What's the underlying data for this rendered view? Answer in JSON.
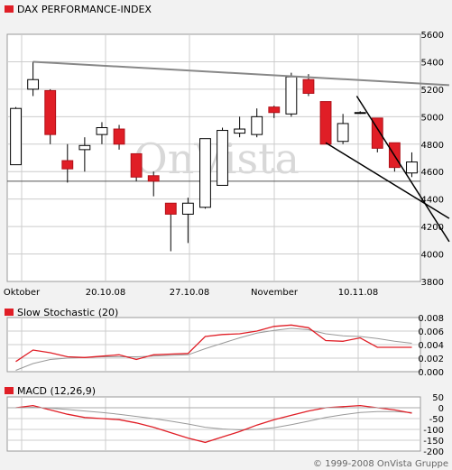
{
  "legend": {
    "main": "DAX PERFORMANCE-INDEX",
    "stochastic": "Slow Stochastic (20)",
    "macd": "MACD (12,26,9)"
  },
  "watermark": "OnVista",
  "copyright": "© 1999-2008 OnVista Gruppe",
  "colors": {
    "up": "#ffffff",
    "down": "#e01e26",
    "signal": "#999999",
    "trend": "#000000",
    "resistance": "#888888",
    "grid": "#cccccc"
  },
  "chart_data": [
    {
      "type": "candlestick",
      "title": "DAX PERFORMANCE-INDEX",
      "x_labels": [
        "Oktober",
        "20.10.08",
        "27.10.08",
        "November",
        "10.11.08"
      ],
      "ylim": [
        3800,
        5600
      ],
      "yticks": [
        3800,
        4000,
        4200,
        4400,
        4600,
        4800,
        5000,
        5200,
        5400,
        5600
      ],
      "grid": true,
      "legend_position": "top-left",
      "candles": [
        {
          "open": 4650,
          "high": 5070,
          "low": 4650,
          "close": 5060
        },
        {
          "open": 5200,
          "high": 5400,
          "low": 5150,
          "close": 5270
        },
        {
          "open": 5190,
          "high": 5200,
          "low": 4800,
          "close": 4870
        },
        {
          "open": 4680,
          "high": 4800,
          "low": 4520,
          "close": 4620
        },
        {
          "open": 4760,
          "high": 4850,
          "low": 4600,
          "close": 4790
        },
        {
          "open": 4870,
          "high": 4960,
          "low": 4800,
          "close": 4920
        },
        {
          "open": 4910,
          "high": 4940,
          "low": 4760,
          "close": 4800
        },
        {
          "open": 4730,
          "high": 4730,
          "low": 4530,
          "close": 4560
        },
        {
          "open": 4570,
          "high": 4600,
          "low": 4420,
          "close": 4530
        },
        {
          "open": 4370,
          "high": 4370,
          "low": 4020,
          "close": 4290
        },
        {
          "open": 4290,
          "high": 4410,
          "low": 4080,
          "close": 4370
        },
        {
          "open": 4340,
          "high": 4840,
          "low": 4330,
          "close": 4840
        },
        {
          "open": 4500,
          "high": 4920,
          "low": 4500,
          "close": 4900
        },
        {
          "open": 4880,
          "high": 5000,
          "low": 4850,
          "close": 4910
        },
        {
          "open": 4870,
          "high": 5060,
          "low": 4850,
          "close": 5000
        },
        {
          "open": 5070,
          "high": 5080,
          "low": 4990,
          "close": 5030
        },
        {
          "open": 5020,
          "high": 5320,
          "low": 5000,
          "close": 5290
        },
        {
          "open": 5270,
          "high": 5310,
          "low": 5150,
          "close": 5170
        },
        {
          "open": 5110,
          "high": 5110,
          "low": 4800,
          "close": 4800
        },
        {
          "open": 4820,
          "high": 5020,
          "low": 4800,
          "close": 4950
        },
        {
          "open": 5030,
          "high": 5040,
          "low": 5020,
          "close": 5030
        },
        {
          "open": 4990,
          "high": 4990,
          "low": 4740,
          "close": 4770
        },
        {
          "open": 4810,
          "high": 4810,
          "low": 4600,
          "close": 4630
        },
        {
          "open": 4590,
          "high": 4740,
          "low": 4560,
          "close": 4670
        }
      ],
      "support_level": 4530,
      "trend_lines": [
        {
          "from": [
            1,
            5400
          ],
          "to": [
            23.6,
            5230
          ]
        },
        {
          "from": [
            18,
            4810
          ],
          "to": [
            23.6,
            4380
          ]
        },
        {
          "from": [
            19.8,
            5150
          ],
          "to": [
            23.6,
            4400
          ]
        }
      ]
    },
    {
      "type": "line",
      "title": "Slow Stochastic (20)",
      "ylim": [
        0,
        0.008
      ],
      "yticks": [
        "0.000",
        "0.002",
        "0.004",
        "0.006",
        "0.008"
      ],
      "grid": true,
      "series": [
        {
          "values": [
            0.0015,
            0.0032,
            0.0028,
            0.0022,
            0.0021,
            0.0023,
            0.0025,
            0.0018,
            0.0025,
            0.0026,
            0.0027,
            0.0052,
            0.0055,
            0.0056,
            0.006,
            0.0067,
            0.0069,
            0.0065,
            0.0046,
            0.0045,
            0.005,
            0.0036,
            0.0036,
            0.0036
          ]
        },
        {
          "values": [
            0.0002,
            0.0012,
            0.0018,
            0.002,
            0.0021,
            0.0022,
            0.0022,
            0.0022,
            0.0023,
            0.0024,
            0.0025,
            0.0034,
            0.0042,
            0.005,
            0.0057,
            0.0061,
            0.0064,
            0.0062,
            0.0056,
            0.0053,
            0.0052,
            0.0049,
            0.0045,
            0.0042
          ]
        }
      ]
    },
    {
      "type": "line",
      "title": "MACD (12,26,9)",
      "ylim": [
        -200,
        50
      ],
      "yticks": [
        "50",
        "0",
        "-50",
        "-100",
        "-150",
        "-200"
      ],
      "grid": true,
      "series": [
        {
          "values": [
            0,
            10,
            -10,
            -30,
            -45,
            -50,
            -55,
            -70,
            -90,
            -115,
            -140,
            -160,
            -135,
            -110,
            -80,
            -55,
            -35,
            -15,
            0,
            5,
            10,
            0,
            -10,
            -25
          ]
        },
        {
          "values": [
            0,
            2,
            -2,
            -8,
            -15,
            -22,
            -30,
            -40,
            -50,
            -62,
            -75,
            -90,
            -98,
            -102,
            -100,
            -92,
            -78,
            -62,
            -45,
            -32,
            -22,
            -18,
            -18,
            -22
          ]
        }
      ]
    }
  ]
}
